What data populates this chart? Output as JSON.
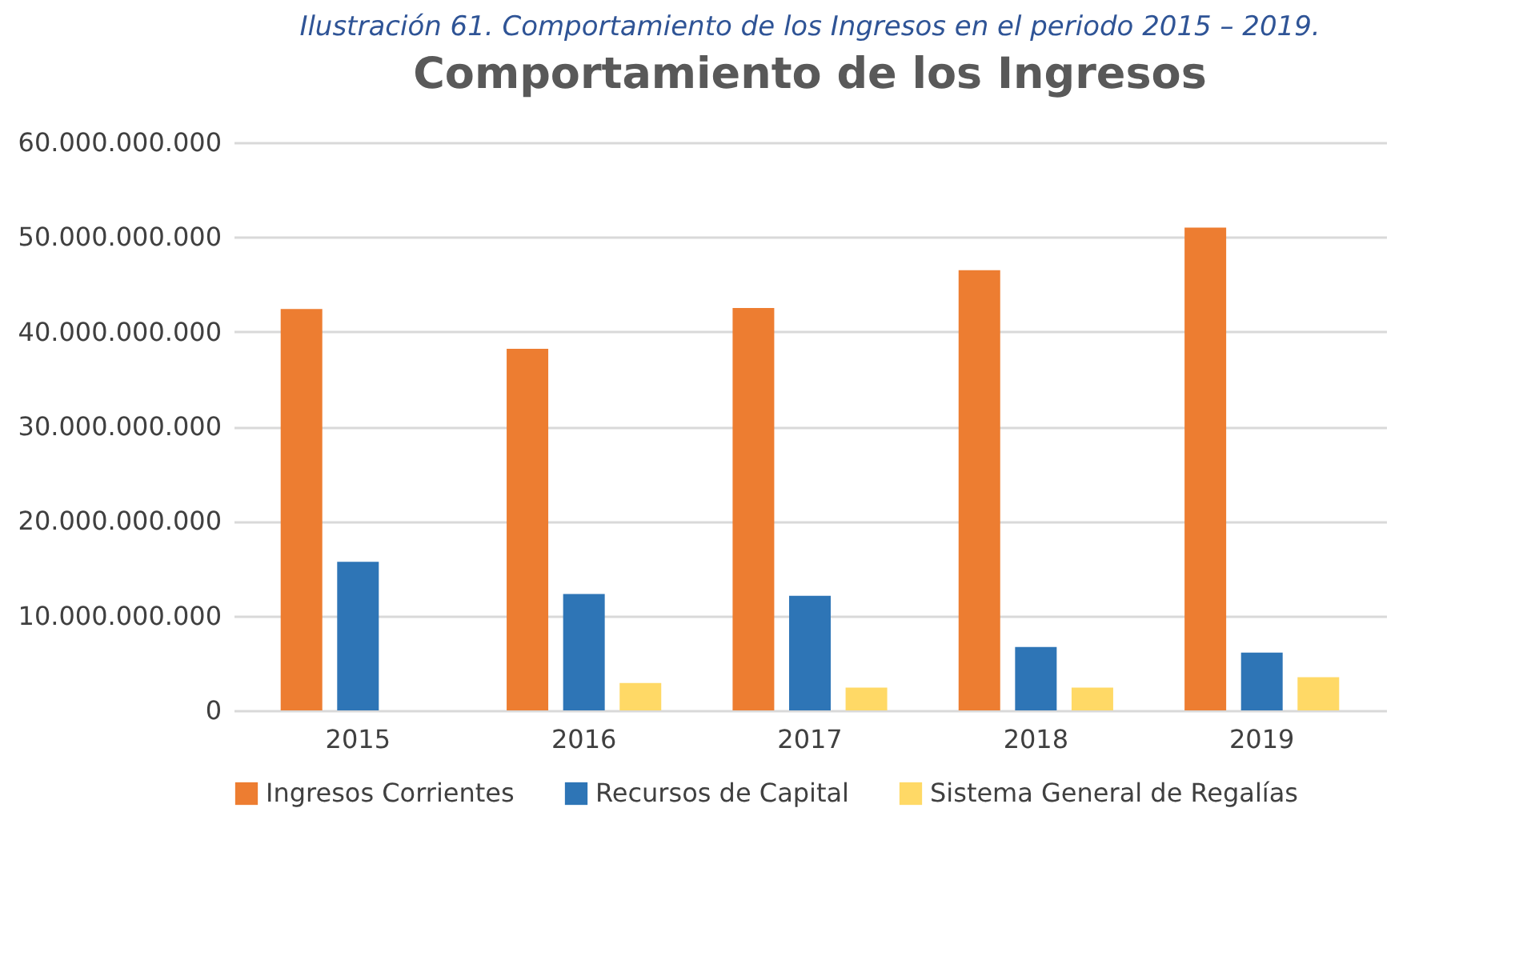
{
  "chart_data": {
    "type": "bar",
    "title": "Comportamiento de los Ingresos",
    "annotations": [
      "Ilustración 61. Comportamiento de los Ingresos en el periodo 2015 – 2019."
    ],
    "categories": [
      "2015",
      "2016",
      "2017",
      "2018",
      "2019"
    ],
    "series": [
      {
        "name": "Ingresos Corrientes",
        "color": "#ed7d31",
        "values": [
          42400000000,
          38200000000,
          42500000000,
          46500000000,
          51000000000
        ]
      },
      {
        "name": "Recursos de Capital",
        "color": "#2e75b6",
        "values": [
          15700000000,
          12300000000,
          12100000000,
          6700000000,
          6100000000
        ]
      },
      {
        "name": "Sistema General de Regalías",
        "color": "#ffd966",
        "values": [
          null,
          2900000000,
          2400000000,
          2400000000,
          3500000000
        ]
      }
    ],
    "ylim": [
      0,
      60000000000
    ],
    "yticks": [
      {
        "value": 0,
        "label": "0"
      },
      {
        "value": 10000000000,
        "label": "10.000.000.000"
      },
      {
        "value": 20000000000,
        "label": "20.000.000.000"
      },
      {
        "value": 30000000000,
        "label": "30.000.000.000"
      },
      {
        "value": 40000000000,
        "label": "40.000.000.000"
      },
      {
        "value": 50000000000,
        "label": "50.000.000.000"
      },
      {
        "value": 60000000000,
        "label": "60.000.000.000"
      }
    ],
    "grid": "y",
    "legend": "bottom"
  }
}
